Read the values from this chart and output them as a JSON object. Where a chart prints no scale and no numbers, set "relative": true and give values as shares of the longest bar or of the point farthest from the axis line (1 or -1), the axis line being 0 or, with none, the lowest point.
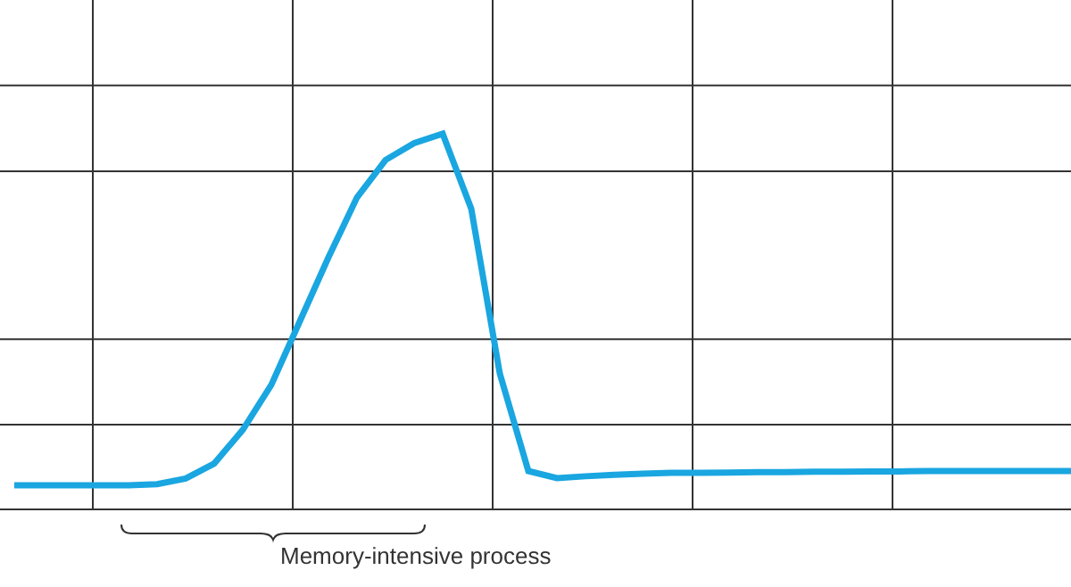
{
  "chart_data": {
    "type": "line",
    "relative": true,
    "grid": true,
    "marker": "none",
    "line_style": "solid",
    "categories": [
      null,
      null,
      null,
      null,
      null,
      null,
      null,
      null,
      null,
      null,
      null,
      null,
      null,
      null,
      null,
      null,
      null,
      null,
      null,
      null,
      null,
      null,
      null,
      null,
      null,
      null,
      null,
      null,
      null,
      null,
      null,
      null,
      null,
      null,
      null,
      null,
      null,
      null
    ],
    "series": [
      {
        "color": "#1aa6e0",
        "values": [
          0.062,
          0.062,
          0.062,
          0.062,
          0.062,
          0.065,
          0.08,
          0.12,
          0.21,
          0.33,
          0.5,
          0.67,
          0.83,
          0.93,
          0.975,
          1.0,
          0.8,
          0.36,
          0.1,
          0.081,
          0.086,
          0.09,
          0.093,
          0.095,
          0.095,
          0.096,
          0.097,
          0.097,
          0.098,
          0.098,
          0.099,
          0.099,
          0.1,
          0.1,
          0.1,
          0.1,
          0.1,
          0.1
        ]
      }
    ],
    "annotations": [
      "Memory-intensive process"
    ]
  }
}
